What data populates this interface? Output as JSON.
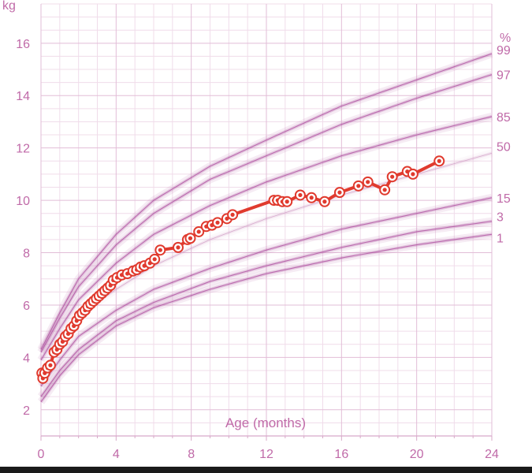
{
  "chart_data": {
    "type": "line",
    "title": "",
    "xlabel": "Age (months)",
    "ylabel": "kg",
    "xlim": [
      0,
      24
    ],
    "ylim": [
      1,
      17.5
    ],
    "x_ticks": [
      0,
      4,
      8,
      12,
      16,
      20,
      24
    ],
    "y_ticks": [
      2,
      4,
      6,
      8,
      10,
      12,
      14,
      16
    ],
    "percentile_unit": "%",
    "percentiles": [
      {
        "name": "99",
        "values": [
          [
            0,
            4.3
          ],
          [
            1,
            5.7
          ],
          [
            2,
            7.0
          ],
          [
            4,
            8.7
          ],
          [
            6,
            10.0
          ],
          [
            9,
            11.3
          ],
          [
            12,
            12.3
          ],
          [
            16,
            13.6
          ],
          [
            20,
            14.6
          ],
          [
            24,
            15.6
          ]
        ]
      },
      {
        "name": "97",
        "values": [
          [
            0,
            4.2
          ],
          [
            1,
            5.5
          ],
          [
            2,
            6.7
          ],
          [
            4,
            8.3
          ],
          [
            6,
            9.5
          ],
          [
            9,
            10.8
          ],
          [
            12,
            11.7
          ],
          [
            16,
            12.9
          ],
          [
            20,
            13.9
          ],
          [
            24,
            14.8
          ]
        ]
      },
      {
        "name": "85",
        "values": [
          [
            0,
            3.9
          ],
          [
            1,
            5.1
          ],
          [
            2,
            6.2
          ],
          [
            4,
            7.6
          ],
          [
            6,
            8.7
          ],
          [
            9,
            9.8
          ],
          [
            12,
            10.7
          ],
          [
            16,
            11.7
          ],
          [
            20,
            12.5
          ],
          [
            24,
            13.2
          ]
        ]
      },
      {
        "name": "50",
        "values": [
          [
            0,
            3.3
          ],
          [
            1,
            4.5
          ],
          [
            2,
            5.6
          ],
          [
            4,
            6.6
          ],
          [
            6,
            7.5
          ],
          [
            9,
            8.5
          ],
          [
            12,
            9.3
          ],
          [
            16,
            10.2
          ],
          [
            20,
            11.0
          ],
          [
            24,
            11.8
          ]
        ]
      },
      {
        "name": "15",
        "values": [
          [
            0,
            2.9
          ],
          [
            1,
            3.9
          ],
          [
            2,
            4.8
          ],
          [
            4,
            5.8
          ],
          [
            6,
            6.6
          ],
          [
            9,
            7.4
          ],
          [
            12,
            8.1
          ],
          [
            16,
            8.9
          ],
          [
            20,
            9.5
          ],
          [
            24,
            10.1
          ]
        ]
      },
      {
        "name": "3",
        "values": [
          [
            0,
            2.5
          ],
          [
            1,
            3.5
          ],
          [
            2,
            4.3
          ],
          [
            4,
            5.4
          ],
          [
            6,
            6.1
          ],
          [
            9,
            6.9
          ],
          [
            12,
            7.5
          ],
          [
            16,
            8.2
          ],
          [
            20,
            8.8
          ],
          [
            24,
            9.2
          ]
        ]
      },
      {
        "name": "1",
        "values": [
          [
            0,
            2.3
          ],
          [
            1,
            3.3
          ],
          [
            2,
            4.1
          ],
          [
            4,
            5.2
          ],
          [
            6,
            5.9
          ],
          [
            9,
            6.6
          ],
          [
            12,
            7.2
          ],
          [
            16,
            7.8
          ],
          [
            20,
            8.3
          ],
          [
            24,
            8.7
          ]
        ]
      }
    ],
    "series": [
      {
        "color": "#e03a2e",
        "points": [
          [
            0.05,
            3.4
          ],
          [
            0.1,
            3.2
          ],
          [
            0.2,
            3.4
          ],
          [
            0.35,
            3.6
          ],
          [
            0.5,
            3.7
          ],
          [
            0.7,
            4.2
          ],
          [
            0.85,
            4.3
          ],
          [
            1.0,
            4.5
          ],
          [
            1.15,
            4.6
          ],
          [
            1.3,
            4.8
          ],
          [
            1.45,
            4.9
          ],
          [
            1.6,
            5.1
          ],
          [
            1.75,
            5.2
          ],
          [
            1.9,
            5.4
          ],
          [
            2.05,
            5.6
          ],
          [
            2.2,
            5.7
          ],
          [
            2.35,
            5.8
          ],
          [
            2.5,
            5.95
          ],
          [
            2.65,
            6.05
          ],
          [
            2.8,
            6.15
          ],
          [
            2.95,
            6.25
          ],
          [
            3.1,
            6.35
          ],
          [
            3.25,
            6.45
          ],
          [
            3.4,
            6.55
          ],
          [
            3.55,
            6.65
          ],
          [
            3.7,
            6.75
          ],
          [
            3.85,
            6.95
          ],
          [
            4.05,
            7.05
          ],
          [
            4.3,
            7.15
          ],
          [
            4.6,
            7.2
          ],
          [
            4.9,
            7.3
          ],
          [
            5.1,
            7.35
          ],
          [
            5.3,
            7.45
          ],
          [
            5.5,
            7.5
          ],
          [
            5.8,
            7.6
          ],
          [
            6.05,
            7.75
          ],
          [
            6.35,
            8.1
          ],
          [
            7.3,
            8.2
          ],
          [
            7.8,
            8.5
          ],
          [
            7.95,
            8.55
          ],
          [
            8.4,
            8.8
          ],
          [
            8.8,
            9.0
          ],
          [
            9.1,
            9.05
          ],
          [
            9.4,
            9.15
          ],
          [
            9.9,
            9.3
          ],
          [
            10.2,
            9.45
          ],
          [
            12.4,
            10.0
          ],
          [
            12.6,
            10.0
          ],
          [
            12.85,
            9.95
          ],
          [
            13.1,
            9.95
          ],
          [
            13.8,
            10.2
          ],
          [
            14.4,
            10.1
          ],
          [
            15.1,
            9.95
          ],
          [
            15.9,
            10.3
          ],
          [
            16.9,
            10.55
          ],
          [
            17.4,
            10.7
          ],
          [
            18.3,
            10.4
          ],
          [
            18.7,
            10.9
          ],
          [
            19.5,
            11.1
          ],
          [
            19.8,
            11.0
          ],
          [
            21.2,
            11.5
          ]
        ]
      }
    ]
  }
}
